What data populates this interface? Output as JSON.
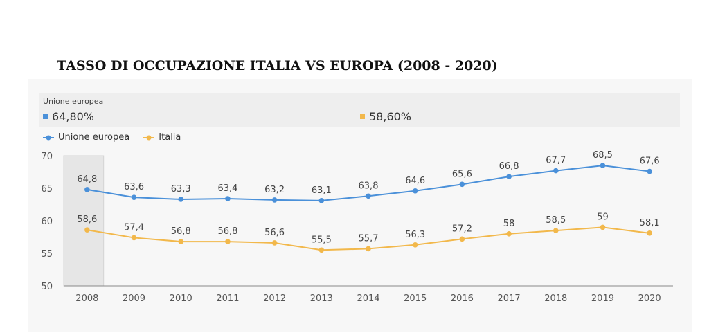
{
  "page": {
    "title": "TASSO DI OCCUPAZIONE ITALIA VS EUROPA (2008 - 2020)"
  },
  "summary": {
    "header": "Unione europea",
    "items": [
      {
        "value": "64,80%",
        "color": "#4a90d9"
      },
      {
        "value": "58,60%",
        "color": "#f2b84b"
      }
    ]
  },
  "chart_data": {
    "type": "line",
    "x": [
      "2008",
      "2009",
      "2010",
      "2011",
      "2012",
      "2013",
      "2014",
      "2015",
      "2016",
      "2017",
      "2018",
      "2019",
      "2020"
    ],
    "series": [
      {
        "name": "Unione europea",
        "color": "#4a90d9",
        "values": [
          64.8,
          63.6,
          63.3,
          63.4,
          63.2,
          63.1,
          63.8,
          64.6,
          65.6,
          66.8,
          67.7,
          68.5,
          67.6
        ],
        "labels": [
          "64,8",
          "63,6",
          "63,3",
          "63,4",
          "63,2",
          "63,1",
          "63,8",
          "64,6",
          "65,6",
          "66,8",
          "67,7",
          "68,5",
          "67,6"
        ]
      },
      {
        "name": "Italia",
        "color": "#f2b84b",
        "values": [
          58.6,
          57.4,
          56.8,
          56.8,
          56.6,
          55.5,
          55.7,
          56.3,
          57.2,
          58,
          58.5,
          59,
          58.1
        ],
        "labels": [
          "58,6",
          "57,4",
          "56,8",
          "56,8",
          "56,6",
          "55,5",
          "55,7",
          "56,3",
          "57,2",
          "58",
          "58,5",
          "59",
          "58,1"
        ]
      }
    ],
    "ylim": [
      50,
      70
    ],
    "yticks": [
      50,
      55,
      60,
      65,
      70
    ],
    "highlighted_category": "2008",
    "grid": false,
    "legend": "top-left"
  }
}
